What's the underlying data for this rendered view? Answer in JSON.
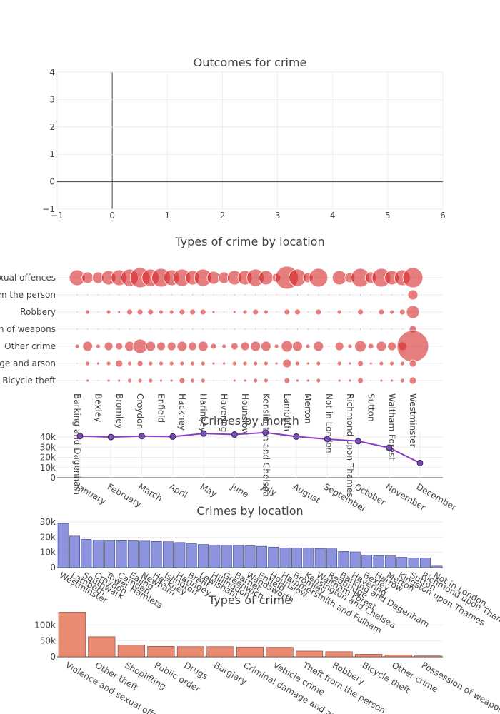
{
  "colors": {
    "text": "#444444",
    "grid": "#eeeeee",
    "bubble": "#d62728",
    "line": "#8a3fc4",
    "bar_location": "#8c94e0",
    "bar_type": "#e98a72"
  },
  "chart_data": [
    {
      "id": "outcomes",
      "type": "scatter",
      "title": "Outcomes for crime",
      "xlim": [
        -1,
        6
      ],
      "ylim": [
        -1,
        4
      ],
      "xticks": [
        "−1",
        "0",
        "1",
        "2",
        "3",
        "4",
        "5",
        "6"
      ],
      "yticks": [
        "−1",
        "0",
        "1",
        "2",
        "3",
        "4"
      ],
      "points": []
    },
    {
      "id": "types_by_location",
      "type": "scatter",
      "title": "Types of crime by location",
      "locations": [
        "Barking and Dagenham",
        "Barnet",
        "Bexley",
        "Brent",
        "Bromley",
        "Camden",
        "Croydon",
        "Ealing",
        "Enfield",
        "Greenwich",
        "Hackney",
        "Hammersmith and Fulham",
        "Haringey",
        "Harrow",
        "Havering",
        "Hillingdon",
        "Hounslow",
        "Islington",
        "Kensington and Chelsea",
        "Kingston upon Thames",
        "Lambeth",
        "Lewisham",
        "Merton",
        "Newham",
        "Not in London",
        "Redbridge",
        "Richmond upon Thames",
        "Southwark",
        "Sutton",
        "Tower Hamlets",
        "Waltham Forest",
        "Wandsworth",
        "Westminster"
      ],
      "location_tick_labels": [
        "Barking and Dagenham",
        "Bexley",
        "Bromley",
        "Croydon",
        "Enfield",
        "Hackney",
        "Haringey",
        "Havering",
        "Hounslow",
        "Kensington and Chelsea",
        "Lambeth",
        "Merton",
        "Not in London",
        "Richmond upon Thames",
        "Sutton",
        "Waltham Forest",
        "Westminster"
      ],
      "crime_types": [
        "Violence and sexual offences",
        "Theft from the person",
        "Robbery",
        "Possession of weapons",
        "Other crime",
        "Criminal damage and arson",
        "Bicycle theft"
      ],
      "crime_type_labels": [
        "Violence and sexual offences",
        "Theft from the person",
        "Robbery",
        "Possession of weapons",
        "Other crime",
        "Criminal damage and arson",
        "Bicycle theft"
      ],
      "marker_size_by_type": [
        [
          11,
          8,
          8,
          10,
          11,
          12,
          14,
          12,
          13,
          11,
          12,
          10,
          12,
          9,
          8,
          10,
          10,
          12,
          10,
          6,
          16,
          12,
          7,
          13,
          1,
          10,
          7,
          13,
          8,
          13,
          10,
          11,
          14
        ],
        [
          1,
          1,
          1,
          1,
          1,
          1,
          1,
          1,
          1,
          1,
          1,
          1,
          1,
          1,
          1,
          1,
          1,
          1,
          1,
          1,
          1,
          1,
          1,
          1,
          1,
          1,
          1,
          1,
          1,
          1,
          1,
          1,
          7
        ],
        [
          1,
          3,
          1,
          3,
          2,
          4,
          4,
          4,
          3,
          3,
          4,
          4,
          4,
          2,
          1,
          2,
          3,
          4,
          3,
          1,
          4,
          4,
          1,
          4,
          1,
          3,
          1,
          4,
          1,
          4,
          3,
          4,
          9
        ],
        [
          1,
          1,
          1,
          1,
          1,
          1,
          1,
          1,
          1,
          1,
          1,
          1,
          1,
          1,
          1,
          1,
          1,
          1,
          1,
          1,
          1,
          1,
          1,
          1,
          1,
          1,
          1,
          1,
          1,
          1,
          1,
          1,
          5
        ],
        [
          3,
          7,
          3,
          6,
          5,
          7,
          10,
          7,
          6,
          6,
          7,
          6,
          7,
          4,
          3,
          5,
          6,
          7,
          7,
          3,
          8,
          7,
          3,
          7,
          1,
          6,
          3,
          8,
          4,
          7,
          6,
          6,
          22
        ],
        [
          1,
          3,
          2,
          3,
          5,
          3,
          4,
          3,
          3,
          3,
          3,
          3,
          3,
          2,
          2,
          3,
          3,
          3,
          3,
          2,
          6,
          3,
          2,
          3,
          1,
          3,
          2,
          4,
          2,
          3,
          3,
          3,
          5
        ],
        [
          1,
          2,
          1,
          2,
          2,
          3,
          3,
          3,
          2,
          2,
          4,
          3,
          3,
          1,
          1,
          2,
          2,
          3,
          3,
          1,
          4,
          2,
          2,
          3,
          1,
          2,
          2,
          4,
          1,
          2,
          2,
          3,
          5
        ]
      ]
    },
    {
      "id": "by_month",
      "type": "line",
      "title": "Crimes by month",
      "x": [
        "January",
        "February",
        "March",
        "April",
        "May",
        "June",
        "July",
        "August",
        "September",
        "October",
        "November",
        "December"
      ],
      "values": [
        41000,
        40000,
        41000,
        40500,
        43500,
        42500,
        44500,
        40500,
        38000,
        36000,
        29500,
        14500
      ],
      "ylim": [
        0,
        45000
      ],
      "yticks": [
        0,
        10000,
        20000,
        30000,
        40000
      ],
      "ytick_labels": [
        "0",
        "10k",
        "20k",
        "30k",
        "40k"
      ]
    },
    {
      "id": "by_location",
      "type": "bar",
      "title": "Crimes by location",
      "categories": [
        "Westminster",
        "Lambeth",
        "Southwark",
        "Croydon",
        "Tower Hamlets",
        "Camden",
        "Ealing",
        "Newham",
        "Hackney",
        "Islington",
        "Haringey",
        "Brent",
        "Lewisham",
        "Hillingdon",
        "Greenwich",
        "Barnet",
        "Wandsworth",
        "Enfield",
        "Hounslow",
        "Hammersmith and Fulham",
        "Bromley",
        "Kensington and Chelsea",
        "Waltham Forest",
        "Redbridge",
        "Barking and Dagenham",
        "Havering",
        "Bexley",
        "Harrow",
        "Merton",
        "Kingston upon Thames",
        "Sutton",
        "Richmond upon Thames",
        "Not in London"
      ],
      "values": [
        29000,
        20700,
        18600,
        18000,
        17800,
        17700,
        17600,
        17400,
        17200,
        17000,
        16500,
        15700,
        15200,
        14900,
        14700,
        14600,
        14300,
        14000,
        13500,
        13000,
        12900,
        12800,
        12600,
        12300,
        10600,
        10300,
        8200,
        7900,
        7700,
        6800,
        6400,
        6300,
        1000
      ],
      "ylim": [
        0,
        30000
      ],
      "yticks": [
        0,
        10000,
        20000,
        30000
      ],
      "ytick_labels": [
        "0",
        "10k",
        "20k",
        "30k"
      ]
    },
    {
      "id": "by_type",
      "type": "bar",
      "title": "Types of crime",
      "categories": [
        "Violence and sexual offences",
        "Other theft",
        "Shoplifting",
        "Public order",
        "Drugs",
        "Burglary",
        "Criminal damage and arson",
        "Vehicle crime",
        "Theft from the person",
        "Robbery",
        "Bicycle theft",
        "Other crime",
        "Possession of weapons"
      ],
      "values": [
        140000,
        63000,
        37000,
        33000,
        32000,
        32000,
        31000,
        30000,
        18000,
        16000,
        8000,
        6000,
        3000
      ],
      "ylim": [
        0,
        150000
      ],
      "yticks": [
        0,
        50000,
        100000
      ],
      "ytick_labels": [
        "0",
        "50k",
        "100k"
      ]
    }
  ]
}
